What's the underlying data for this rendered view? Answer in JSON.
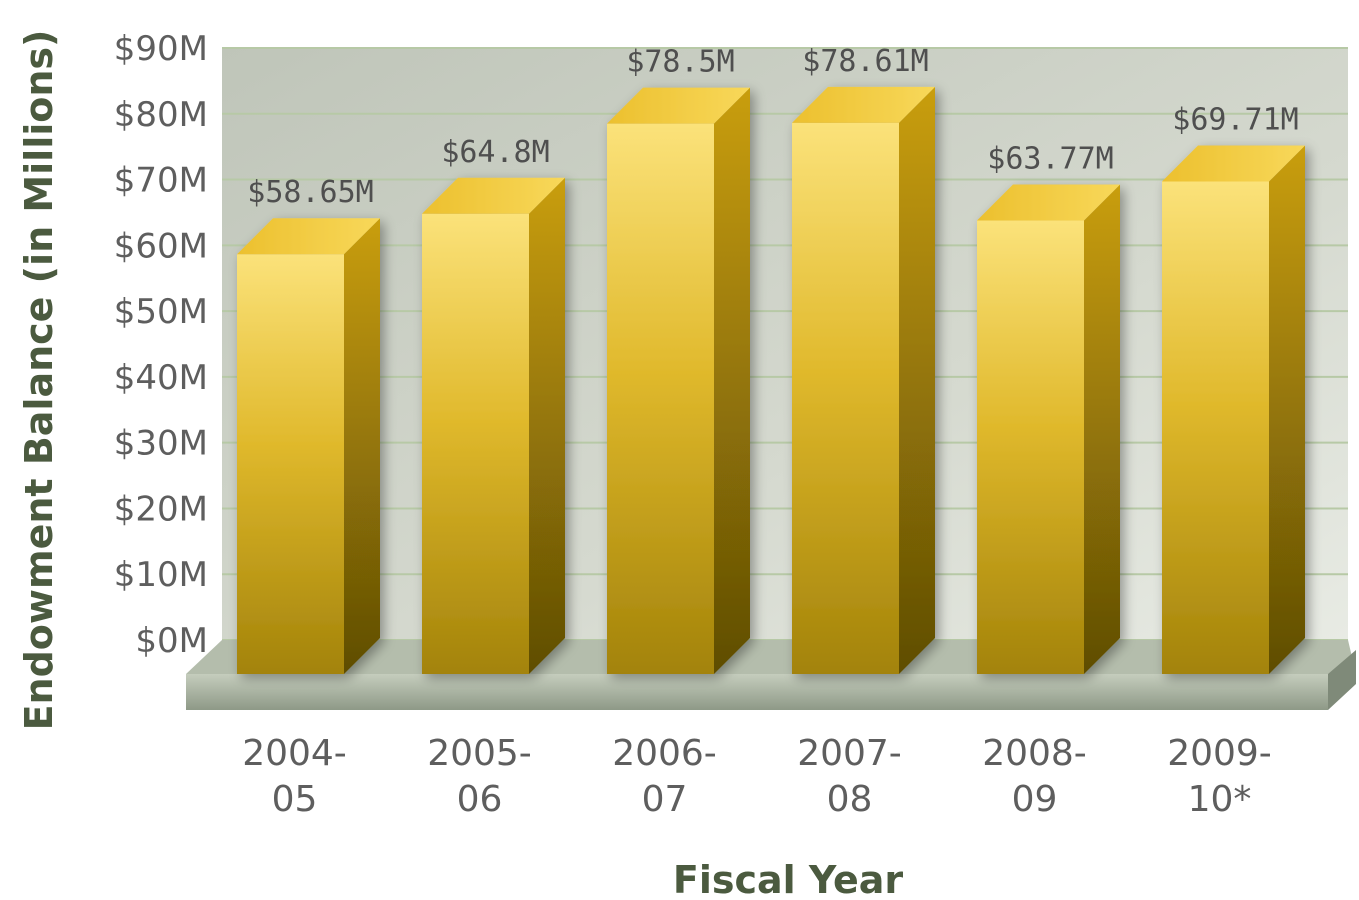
{
  "chart_data": {
    "type": "bar",
    "categories": [
      "2004-05",
      "2005-06",
      "2006-07",
      "2007-08",
      "2008-09",
      "2009-10*"
    ],
    "category_lines": [
      [
        "2004-",
        "05"
      ],
      [
        "2005-",
        "06"
      ],
      [
        "2006-",
        "07"
      ],
      [
        "2007-",
        "08"
      ],
      [
        "2008-",
        "09"
      ],
      [
        "2009-",
        "10*"
      ]
    ],
    "values": [
      58.65,
      64.8,
      78.5,
      78.61,
      63.77,
      69.71
    ],
    "data_labels": [
      "$58.65M",
      "$64.8M",
      "$78.5M",
      "$78.61M",
      "$63.77M",
      "$69.71M"
    ],
    "xlabel": "Fiscal Year",
    "ylabel": "Endowment Balance (in Millions)",
    "ylim": [
      0,
      90
    ],
    "yticks": [
      0,
      10,
      20,
      30,
      40,
      50,
      60,
      70,
      80,
      90
    ],
    "ytick_labels": [
      "$0M",
      "$10M",
      "$20M",
      "$30M",
      "$40M",
      "$50M",
      "$60M",
      "$70M",
      "$80M",
      "$90M"
    ],
    "grid": true,
    "style": "3d-bar",
    "colors": {
      "bar_light": "#fbe27a",
      "bar_mid": "#dcb325",
      "bar_dark": "#9c7d07",
      "bar_side": "#7b6304",
      "bar_top": "#f1c73a",
      "plot_bg": "#c9cfc3",
      "grid": "#b7c9a6",
      "floor": "#a9b3a2"
    }
  }
}
